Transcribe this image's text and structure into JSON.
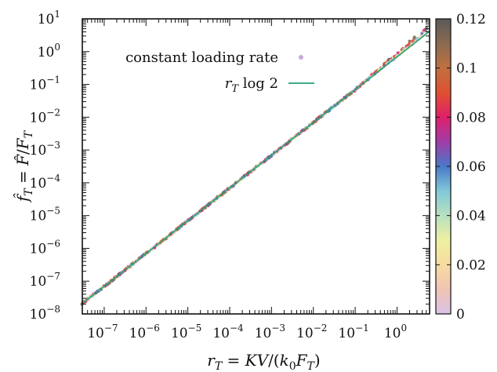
{
  "chart_data": {
    "type": "scatter",
    "xlabel": "r_T = KV/(k_0 F_T)",
    "ylabel": "f̂_T = F̂/F_T",
    "x_scale": "log",
    "y_scale": "log",
    "xlim": [
      3e-08,
      6
    ],
    "ylim": [
      1e-08,
      10
    ],
    "x_ticks": [
      {
        "value": 1e-07,
        "base": "10",
        "exp": "−7"
      },
      {
        "value": 1e-06,
        "base": "10",
        "exp": "−6"
      },
      {
        "value": 1e-05,
        "base": "10",
        "exp": "−5"
      },
      {
        "value": 0.0001,
        "base": "10",
        "exp": "−4"
      },
      {
        "value": 0.001,
        "base": "10",
        "exp": "−3"
      },
      {
        "value": 0.01,
        "base": "10",
        "exp": "−2"
      },
      {
        "value": 0.1,
        "base": "10",
        "exp": "−1"
      },
      {
        "value": 1,
        "base": "10",
        "exp": "0"
      }
    ],
    "y_ticks": [
      {
        "value": 1e-08,
        "base": "10",
        "exp": "−8"
      },
      {
        "value": 1e-07,
        "base": "10",
        "exp": "−7"
      },
      {
        "value": 1e-06,
        "base": "10",
        "exp": "−6"
      },
      {
        "value": 1e-05,
        "base": "10",
        "exp": "−5"
      },
      {
        "value": 0.0001,
        "base": "10",
        "exp": "−4"
      },
      {
        "value": 0.001,
        "base": "10",
        "exp": "−3"
      },
      {
        "value": 0.01,
        "base": "10",
        "exp": "−2"
      },
      {
        "value": 0.1,
        "base": "10",
        "exp": "−1"
      },
      {
        "value": 1,
        "base": "10",
        "exp": "0"
      },
      {
        "value": 10,
        "base": "10",
        "exp": "1"
      }
    ],
    "legend": {
      "placement": "top-left",
      "entries": [
        {
          "label": "constant loading rate",
          "kind": "points",
          "color": "#c8a8d8"
        },
        {
          "label_html": "r<tspan font-size='13' dy='5'>T</tspan><tspan dy='-5'> log 2</tspan>",
          "label": "r_T log 2",
          "kind": "line",
          "color": "#22a07a"
        }
      ]
    },
    "series": [
      {
        "name": "constant loading rate",
        "kind": "points",
        "x_range": [
          3e-08,
          5.5
        ],
        "y_scale_factor": 0.693,
        "curvature_upper": 0.12
      },
      {
        "name": "r_T log 2",
        "kind": "line",
        "color": "#22a07a",
        "x": [
          3e-08,
          6
        ],
        "y": [
          2.08e-08,
          4.16
        ]
      }
    ],
    "colorbar": {
      "min": 0,
      "max": 0.12,
      "ticks": [
        0,
        0.02,
        0.04,
        0.06,
        0.08,
        0.1,
        0.12
      ],
      "tick_labels": [
        "0",
        "0.02",
        "0.04",
        "0.06",
        "0.08",
        "0.1",
        "0.12"
      ],
      "colors": [
        "#d9c2e6",
        "#f0c4b4",
        "#f7dca0",
        "#eef0a0",
        "#b8e0c0",
        "#80c8d8",
        "#4a78c8",
        "#a03ca8",
        "#e0206a",
        "#e05030",
        "#c07040",
        "#8a6a50",
        "#5a5a5a"
      ]
    },
    "grid": false
  }
}
